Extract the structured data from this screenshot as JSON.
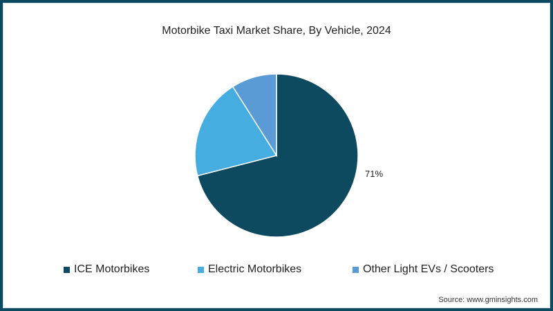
{
  "chart_data": {
    "type": "pie",
    "title": "Motorbike Taxi Market Share, By Vehicle, 2024",
    "categories": [
      "ICE Motorbikes",
      "Electric Motorbikes",
      "Other Light EVs / Scooters"
    ],
    "values": [
      71,
      20,
      9
    ],
    "unit": "%",
    "colors": [
      "#0d4a60",
      "#45ade0",
      "#5b9bd5"
    ],
    "data_labels": [
      {
        "category": "ICE Motorbikes",
        "label": "71%"
      }
    ],
    "legend_position": "bottom",
    "start_angle_deg": 0,
    "direction": "clockwise"
  },
  "title": "Motorbike Taxi Market Share, By Vehicle, 2024",
  "label_ice": "71%",
  "legend": [
    {
      "label": "ICE Motorbikes",
      "color": "#0d4a60"
    },
    {
      "label": "Electric Motorbikes",
      "color": "#45ade0"
    },
    {
      "label": "Other Light EVs / Scooters",
      "color": "#5b9bd5"
    }
  ],
  "source": "Source: www.gminsights.com"
}
